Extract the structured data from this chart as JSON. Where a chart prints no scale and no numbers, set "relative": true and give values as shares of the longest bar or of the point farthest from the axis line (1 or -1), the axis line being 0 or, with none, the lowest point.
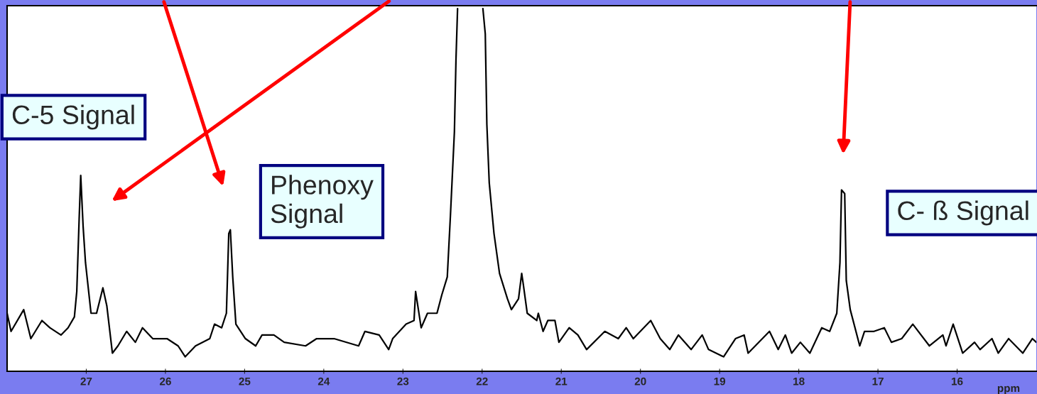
{
  "chart_data": {
    "type": "line",
    "relative": true,
    "xlabel": "ppm",
    "tick_labels": "x",
    "xlim": [
      28.0,
      15.0
    ],
    "xticks": [
      27,
      26,
      25,
      24,
      23,
      22,
      21,
      20,
      19,
      18,
      17,
      16
    ],
    "annotations": [
      "C-5 Signal",
      "Phenoxy\nSignal",
      "C- ß Signal"
    ],
    "x": [
      28.0,
      27.95,
      27.79,
      27.7,
      27.56,
      27.46,
      27.32,
      27.23,
      27.15,
      27.12,
      27.09,
      27.07,
      27.04,
      27.01,
      26.94,
      26.87,
      26.79,
      26.74,
      26.67,
      26.6,
      26.49,
      26.38,
      26.29,
      26.16,
      25.98,
      25.84,
      25.75,
      25.62,
      25.44,
      25.38,
      25.29,
      25.23,
      25.2,
      25.18,
      25.15,
      25.11,
      24.99,
      24.86,
      24.78,
      24.63,
      24.5,
      24.23,
      24.09,
      23.87,
      23.56,
      23.48,
      23.3,
      23.18,
      23.13,
      22.96,
      22.86,
      22.84,
      22.77,
      22.69,
      22.57,
      22.51,
      22.44,
      22.4,
      22.35,
      22.33,
      22.31,
      22.15,
      21.99,
      21.96,
      21.94,
      21.91,
      21.85,
      21.78,
      21.68,
      21.63,
      21.54,
      21.5,
      21.48,
      21.43,
      21.31,
      21.29,
      21.23,
      21.17,
      21.08,
      21.03,
      20.9,
      20.79,
      20.68,
      20.45,
      20.28,
      20.18,
      20.09,
      19.87,
      19.75,
      19.63,
      19.52,
      19.36,
      19.22,
      19.14,
      18.95,
      18.8,
      18.69,
      18.64,
      18.37,
      18.26,
      18.17,
      18.09,
      17.98,
      17.86,
      17.71,
      17.61,
      17.52,
      17.48,
      17.46,
      17.42,
      17.4,
      17.35,
      17.23,
      17.17,
      17.05,
      16.92,
      16.83,
      16.7,
      16.56,
      16.35,
      16.18,
      16.14,
      16.05,
      15.93,
      15.78,
      15.71,
      15.56,
      15.48,
      15.35,
      15.17,
      15.05,
      15.0
    ],
    "series": [
      {
        "color": "#000000",
        "values": [
          0.16,
          0.11,
          0.17,
          0.09,
          0.14,
          0.12,
          0.1,
          0.12,
          0.15,
          0.22,
          0.42,
          0.54,
          0.4,
          0.3,
          0.16,
          0.16,
          0.23,
          0.18,
          0.05,
          0.07,
          0.11,
          0.08,
          0.12,
          0.09,
          0.09,
          0.07,
          0.04,
          0.07,
          0.09,
          0.13,
          0.12,
          0.16,
          0.38,
          0.39,
          0.26,
          0.13,
          0.09,
          0.07,
          0.1,
          0.1,
          0.08,
          0.07,
          0.09,
          0.09,
          0.07,
          0.11,
          0.1,
          0.06,
          0.09,
          0.13,
          0.14,
          0.22,
          0.12,
          0.16,
          0.16,
          0.21,
          0.26,
          0.43,
          0.66,
          0.86,
          1.0,
          null,
          1.0,
          0.93,
          0.68,
          0.52,
          0.38,
          0.27,
          0.2,
          0.17,
          0.2,
          0.27,
          0.24,
          0.16,
          0.14,
          0.16,
          0.11,
          0.14,
          0.14,
          0.08,
          0.12,
          0.1,
          0.06,
          0.11,
          0.09,
          0.12,
          0.09,
          0.14,
          0.09,
          0.06,
          0.1,
          0.06,
          0.1,
          0.06,
          0.04,
          0.09,
          0.1,
          0.05,
          0.11,
          0.06,
          0.1,
          0.05,
          0.08,
          0.05,
          0.12,
          0.11,
          0.16,
          0.3,
          0.5,
          0.49,
          0.25,
          0.17,
          0.07,
          0.11,
          0.11,
          0.12,
          0.08,
          0.09,
          0.13,
          0.07,
          0.1,
          0.07,
          0.13,
          0.05,
          0.08,
          0.06,
          0.09,
          0.05,
          0.09,
          0.05,
          0.09,
          0.08
        ]
      }
    ]
  }
}
